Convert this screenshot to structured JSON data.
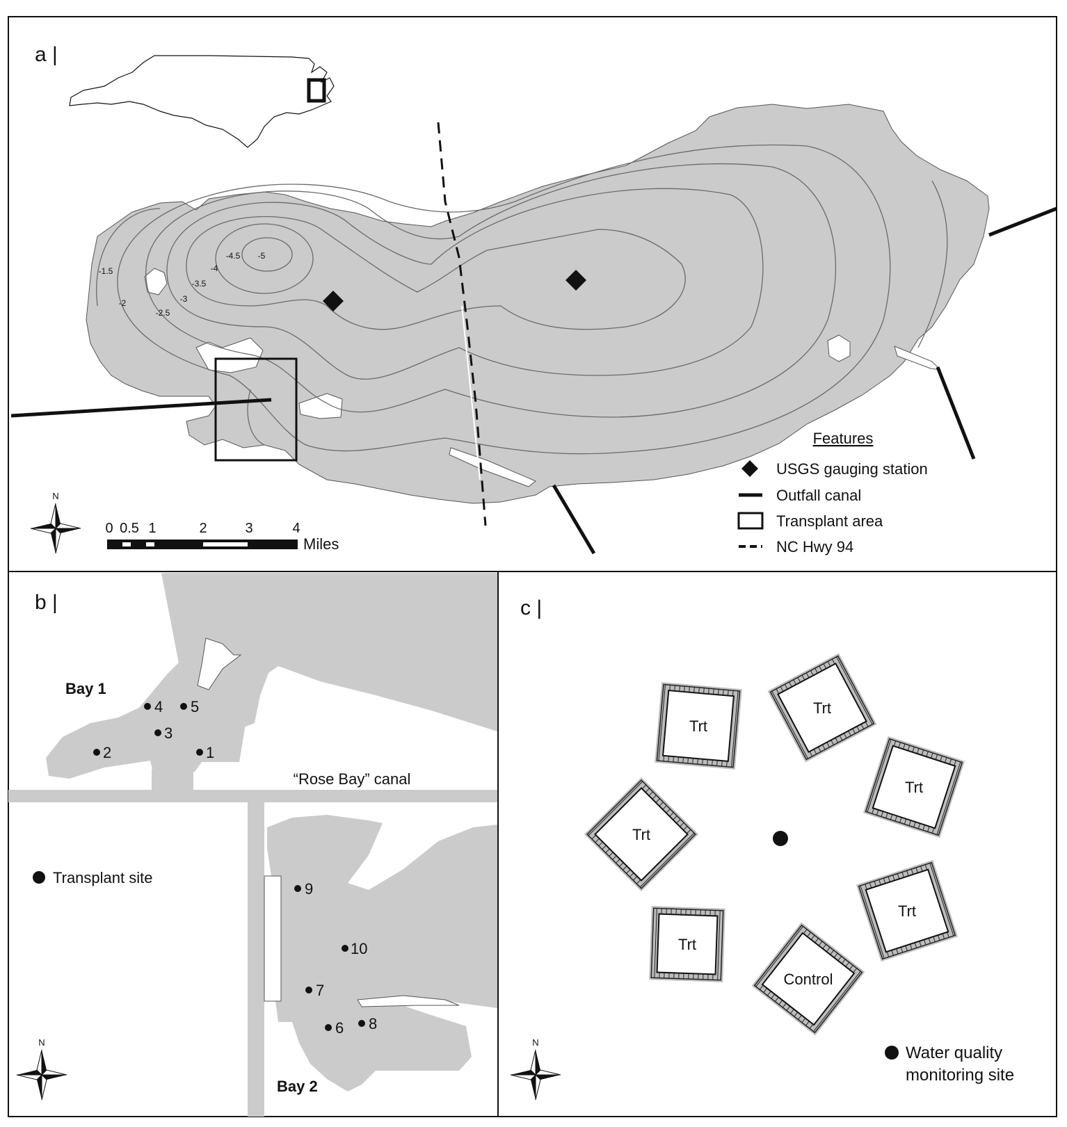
{
  "panel_a": {
    "label": "a |",
    "contours": [
      "-1.5",
      "-2",
      "-2.5",
      "-3",
      "-3.5",
      "-4",
      "-4.5",
      "-5"
    ],
    "scale": {
      "ticks": [
        "0",
        "0.5",
        "1",
        "2",
        "3",
        "4"
      ],
      "unit": "Miles"
    },
    "north": "N",
    "legend": {
      "title": "Features",
      "items": [
        {
          "label": "USGS gauging station",
          "icon": "diamond-icon"
        },
        {
          "label": "Outfall canal",
          "icon": "solid-line-icon"
        },
        {
          "label": "Transplant area",
          "icon": "open-rectangle-icon"
        },
        {
          "label": "NC Hwy 94",
          "icon": "dashed-line-icon"
        }
      ]
    }
  },
  "panel_b": {
    "label": "b |",
    "bay1": "Bay 1",
    "bay2": "Bay 2",
    "canal": "“Rose Bay” canal",
    "sites": [
      "1",
      "2",
      "3",
      "4",
      "5",
      "6",
      "7",
      "8",
      "9",
      "10"
    ],
    "legend": "Transplant site",
    "north": "N"
  },
  "panel_c": {
    "label": "c |",
    "plots": [
      "Trt",
      "Trt",
      "Trt",
      "Trt",
      "Trt",
      "Trt",
      "Control"
    ],
    "legend_line1": "Water quality",
    "legend_line2": "monitoring site",
    "north": "N"
  },
  "colors": {
    "water": "#cbcbcb",
    "land": "#ffffff",
    "ink": "#111111",
    "contour": "#6a6a6a"
  }
}
